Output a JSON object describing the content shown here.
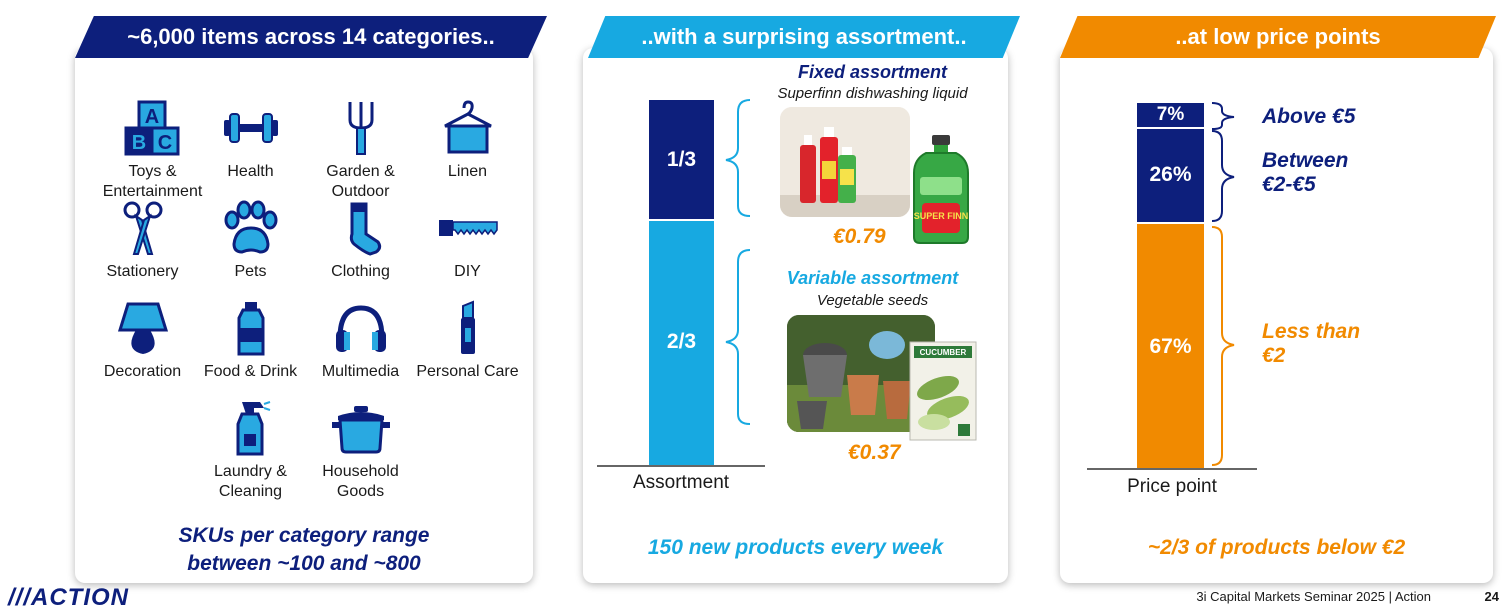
{
  "panels": {
    "categories": {
      "banner": "~6,000 items across 14 categories..",
      "items": [
        {
          "label": "Toys &\nEntertainment",
          "icon": "abc-blocks-icon"
        },
        {
          "label": "Health",
          "icon": "dumbbell-icon"
        },
        {
          "label": "Garden &\nOutdoor",
          "icon": "garden-fork-icon"
        },
        {
          "label": "Linen",
          "icon": "towel-hanger-icon"
        },
        {
          "label": "Stationery",
          "icon": "scissors-icon"
        },
        {
          "label": "Pets",
          "icon": "paw-icon"
        },
        {
          "label": "Clothing",
          "icon": "sock-icon"
        },
        {
          "label": "DIY",
          "icon": "saw-icon"
        },
        {
          "label": "Decoration",
          "icon": "lamp-icon"
        },
        {
          "label": "Food & Drink",
          "icon": "bottle-icon"
        },
        {
          "label": "Multimedia",
          "icon": "headphones-icon"
        },
        {
          "label": "Personal Care",
          "icon": "lipstick-icon"
        },
        {
          "label": "Laundry &\nCleaning",
          "icon": "spray-bottle-icon"
        },
        {
          "label": "Household\nGoods",
          "icon": "cooking-pot-icon"
        }
      ],
      "footer_line1": "SKUs per category range",
      "footer_line2": "between ~100 and ~800"
    },
    "assortment": {
      "banner": "..with a surprising assortment..",
      "bar_top_label": "1/3",
      "bar_bottom_label": "2/3",
      "axis_label": "Assortment",
      "fixed_title": "Fixed assortment",
      "fixed_sub": "Superfinn dishwashing liquid",
      "fixed_price": "€0.79",
      "variable_title": "Variable assortment",
      "variable_sub": "Vegetable seeds",
      "variable_price": "€0.37",
      "seed_pack_text": "CUCUMBER",
      "bottle_brand": "SUPER FINN",
      "footer": "150 new products every week"
    },
    "price_points": {
      "banner": "..at low price points",
      "segments": [
        {
          "pct": "7%",
          "label": "Above €5",
          "value": 7
        },
        {
          "pct": "26%",
          "label": "Between\n€2-€5",
          "value": 26
        },
        {
          "pct": "67%",
          "label": "Less than\n€2",
          "value": 67
        }
      ],
      "axis_label": "Price point",
      "footer": "~2/3 of products below €2"
    }
  },
  "brand": "///ACTION",
  "footer_text": "3i Capital Markets Seminar 2025 | Action",
  "page_number": "24",
  "colors": {
    "navy": "#0d1f7c",
    "cyan": "#17a9e1",
    "orange": "#f18a00"
  }
}
